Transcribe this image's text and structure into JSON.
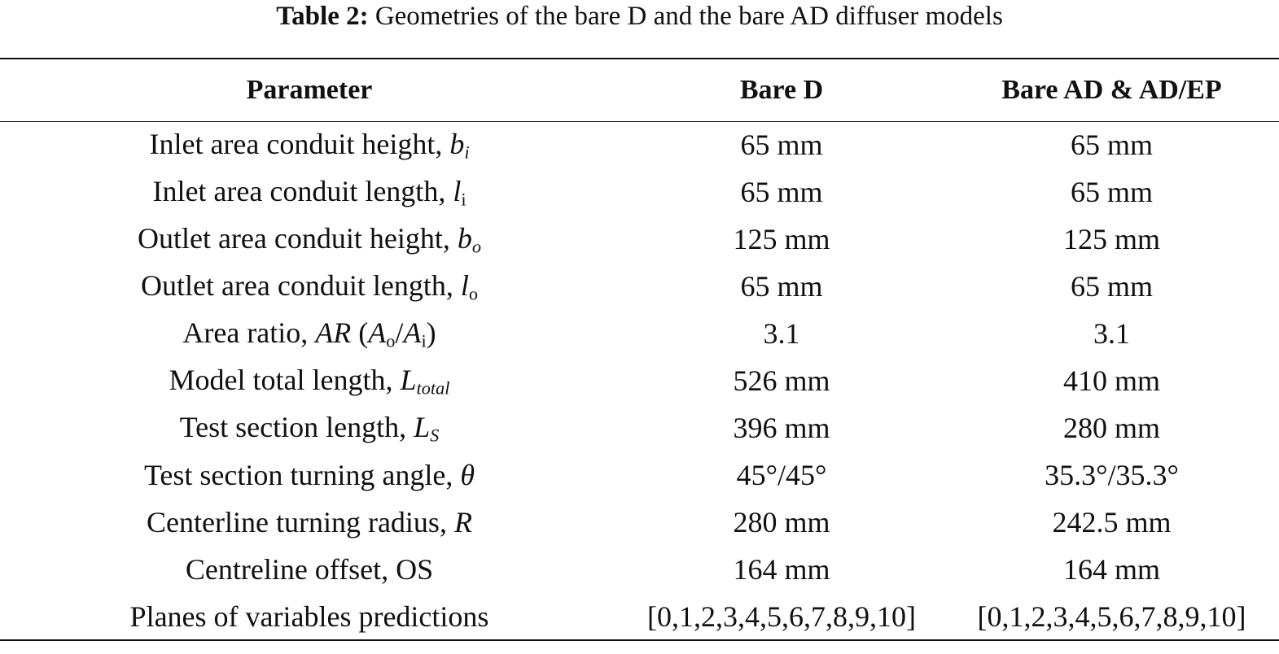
{
  "caption": {
    "label": "Table 2:",
    "text": "Geometries of the bare D and the bare AD diffuser models"
  },
  "table": {
    "headers": [
      "Parameter",
      "Bare D",
      "Bare AD & AD/EP"
    ],
    "rows": [
      {
        "parameter": [
          {
            "text": "Inlet area conduit height, "
          },
          {
            "text": "b",
            "format": "italic"
          },
          {
            "text": "i",
            "format": "sub-italic"
          }
        ],
        "bare_d": "65 mm",
        "bare_ad": "65 mm"
      },
      {
        "parameter": [
          {
            "text": "Inlet area conduit length, "
          },
          {
            "text": "l",
            "format": "italic"
          },
          {
            "text": "i",
            "format": "sub"
          }
        ],
        "bare_d": "65 mm",
        "bare_ad": "65 mm"
      },
      {
        "parameter": [
          {
            "text": "Outlet area conduit height, "
          },
          {
            "text": "b",
            "format": "italic"
          },
          {
            "text": "o",
            "format": "sub-italic"
          }
        ],
        "bare_d": "125 mm",
        "bare_ad": "125 mm"
      },
      {
        "parameter": [
          {
            "text": "Outlet area conduit length, "
          },
          {
            "text": "l",
            "format": "italic"
          },
          {
            "text": "o",
            "format": "sub"
          }
        ],
        "bare_d": "65 mm",
        "bare_ad": "65 mm"
      },
      {
        "parameter": [
          {
            "text": "Area ratio, "
          },
          {
            "text": "AR",
            "format": "italic"
          },
          {
            "text": " ("
          },
          {
            "text": "A",
            "format": "italic"
          },
          {
            "text": "o",
            "format": "sub"
          },
          {
            "text": "/"
          },
          {
            "text": "A",
            "format": "italic"
          },
          {
            "text": "i",
            "format": "sub"
          },
          {
            "text": ")"
          }
        ],
        "bare_d": "3.1",
        "bare_ad": "3.1"
      },
      {
        "parameter": [
          {
            "text": "Model total length, "
          },
          {
            "text": "L",
            "format": "italic"
          },
          {
            "text": "total",
            "format": "sub-italic"
          }
        ],
        "bare_d": "526 mm",
        "bare_ad": "410 mm"
      },
      {
        "parameter": [
          {
            "text": "Test section length, "
          },
          {
            "text": "L",
            "format": "italic"
          },
          {
            "text": "S",
            "format": "sub-italic"
          }
        ],
        "bare_d": "396 mm",
        "bare_ad": "280 mm"
      },
      {
        "parameter": [
          {
            "text": "Test section turning angle, "
          },
          {
            "text": "θ",
            "format": "italic"
          }
        ],
        "bare_d": "45°/45°",
        "bare_ad": "35.3°/35.3°"
      },
      {
        "parameter": [
          {
            "text": "Centerline turning radius, "
          },
          {
            "text": "R",
            "format": "italic"
          }
        ],
        "bare_d": "280 mm",
        "bare_ad": "242.5 mm"
      },
      {
        "parameter": [
          {
            "text": "Centreline offset, OS"
          }
        ],
        "bare_d": "164 mm",
        "bare_ad": "164 mm"
      },
      {
        "parameter": [
          {
            "text": "Planes of variables predictions"
          }
        ],
        "bare_d": "[0,1,2,3,4,5,6,7,8,9,10]",
        "bare_ad": "[0,1,2,3,4,5,6,7,8,9,10]"
      }
    ]
  }
}
